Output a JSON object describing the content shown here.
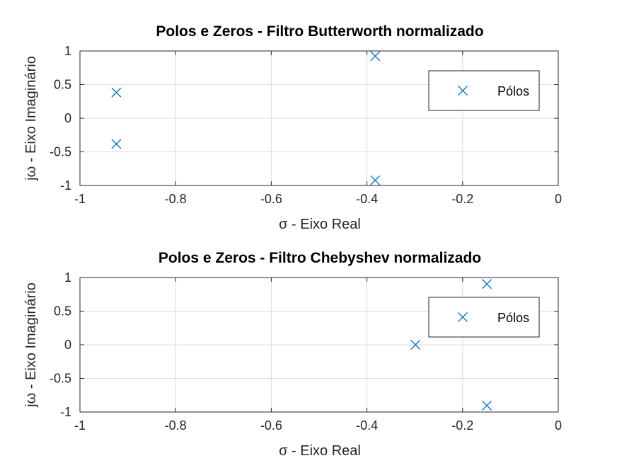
{
  "chart_data": [
    {
      "type": "scatter",
      "title": "Polos e Zeros - Filtro Butterworth normalizado",
      "xlabel": "σ - Eixo Real",
      "ylabel": "jω - Eixo Imaginário",
      "xlim": [
        -1,
        0
      ],
      "ylim": [
        -1,
        1
      ],
      "xticks": [
        "-1",
        "-0.8",
        "-0.6",
        "-0.4",
        "-0.2",
        "0"
      ],
      "yticks": [
        "-1",
        "-0.5",
        "0",
        "0.5",
        "1"
      ],
      "grid": true,
      "legend_position": "top-right",
      "series": [
        {
          "name": "Pólos",
          "marker": "x",
          "color": "#0072BD",
          "x": [
            -0.9239,
            -0.9239,
            -0.3827,
            -0.3827
          ],
          "y": [
            0.3827,
            -0.3827,
            0.9239,
            -0.9239
          ]
        }
      ]
    },
    {
      "type": "scatter",
      "title": "Polos e Zeros - Filtro Chebyshev normalizado",
      "xlabel": "σ - Eixo Real",
      "ylabel": "jω - Eixo Imaginário",
      "xlim": [
        -1,
        0
      ],
      "ylim": [
        -1,
        1
      ],
      "xticks": [
        "-1",
        "-0.8",
        "-0.6",
        "-0.4",
        "-0.2",
        "0"
      ],
      "yticks": [
        "-1",
        "-0.5",
        "0",
        "0.5",
        "1"
      ],
      "grid": true,
      "legend_position": "top-right",
      "series": [
        {
          "name": "Pólos",
          "marker": "x",
          "color": "#0072BD",
          "x": [
            -0.2986,
            -0.1493,
            -0.1493
          ],
          "y": [
            0.0,
            0.9038,
            -0.9038
          ]
        }
      ]
    }
  ]
}
